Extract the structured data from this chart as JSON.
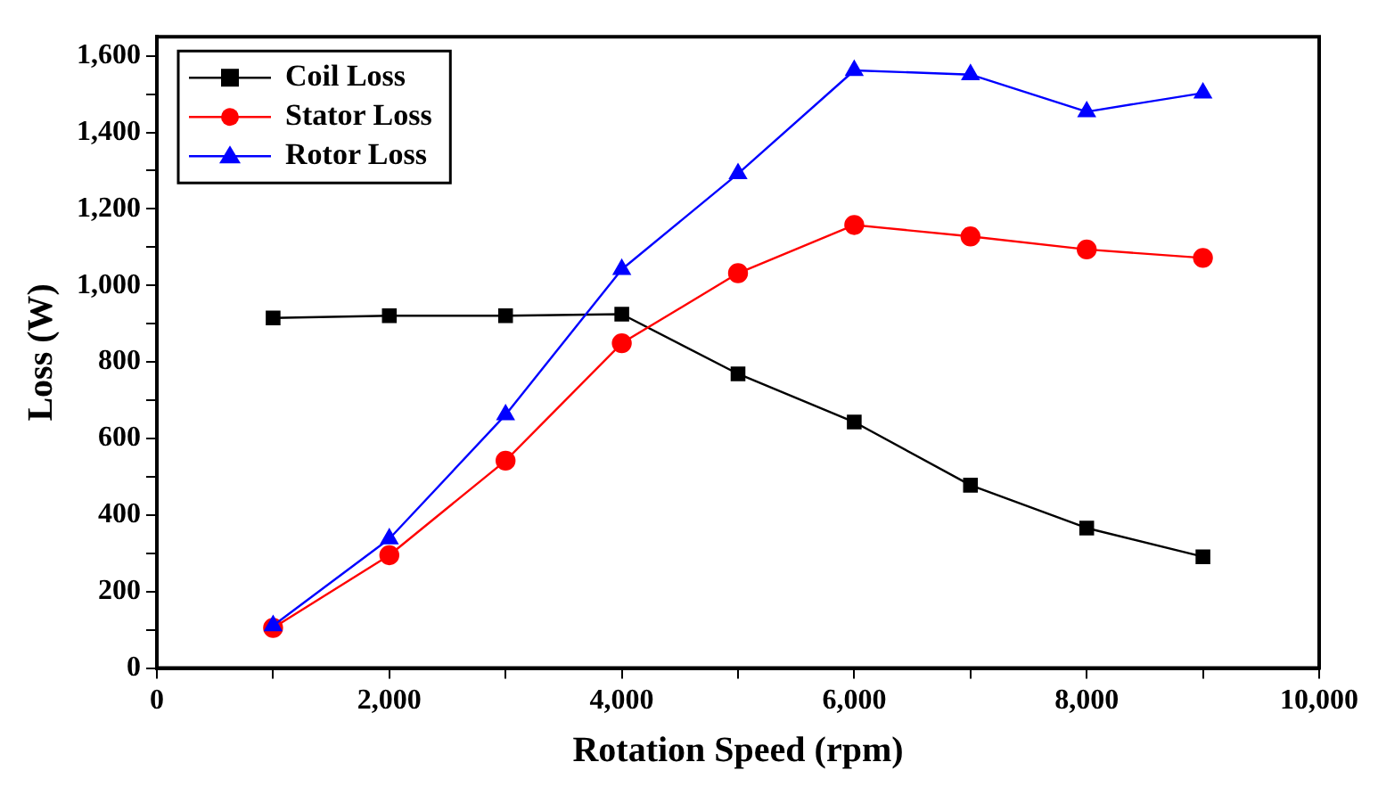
{
  "chart_data": {
    "type": "line",
    "xlabel": "Rotation Speed (rpm)",
    "ylabel": "Loss (W)",
    "x": [
      1000,
      2000,
      3000,
      4000,
      5000,
      6000,
      7000,
      8000,
      9000
    ],
    "series": [
      {
        "name": "Coil Loss",
        "color": "#000000",
        "marker": "square",
        "values": [
          915,
          921,
          921,
          925,
          769,
          643,
          478,
          366,
          291
        ]
      },
      {
        "name": "Stator Loss",
        "color": "#ff0000",
        "marker": "circle",
        "values": [
          105,
          295,
          542,
          849,
          1032,
          1158,
          1128,
          1094,
          1072
        ]
      },
      {
        "name": "Rotor Loss",
        "color": "#0000ff",
        "marker": "triangle",
        "values": [
          111,
          338,
          662,
          1042,
          1292,
          1562,
          1551,
          1454,
          1503
        ]
      }
    ],
    "xlim": [
      0,
      10000
    ],
    "xticks": [
      {
        "value": 0,
        "label": "0"
      },
      {
        "value": 1000,
        "label": null
      },
      {
        "value": 2000,
        "label": "2,000"
      },
      {
        "value": 3000,
        "label": null
      },
      {
        "value": 4000,
        "label": "4,000"
      },
      {
        "value": 5000,
        "label": null
      },
      {
        "value": 6000,
        "label": "6,000"
      },
      {
        "value": 7000,
        "label": null
      },
      {
        "value": 8000,
        "label": "8,000"
      },
      {
        "value": 9000,
        "label": null
      },
      {
        "value": 10000,
        "label": "10,000"
      }
    ],
    "ylim": [
      0,
      1650
    ],
    "yticks": [
      {
        "value": 0,
        "label": "0"
      },
      {
        "value": 100,
        "label": null
      },
      {
        "value": 200,
        "label": "200"
      },
      {
        "value": 300,
        "label": null
      },
      {
        "value": 400,
        "label": "400"
      },
      {
        "value": 500,
        "label": null
      },
      {
        "value": 600,
        "label": "600"
      },
      {
        "value": 700,
        "label": null
      },
      {
        "value": 800,
        "label": "800"
      },
      {
        "value": 900,
        "label": null
      },
      {
        "value": 1000,
        "label": "1,000"
      },
      {
        "value": 1100,
        "label": null
      },
      {
        "value": 1200,
        "label": "1,200"
      },
      {
        "value": 1300,
        "label": null
      },
      {
        "value": 1400,
        "label": "1,400"
      },
      {
        "value": 1500,
        "label": null
      },
      {
        "value": 1600,
        "label": "1,600"
      }
    ],
    "grid": false,
    "legend": "top left",
    "line_style": "solid"
  }
}
